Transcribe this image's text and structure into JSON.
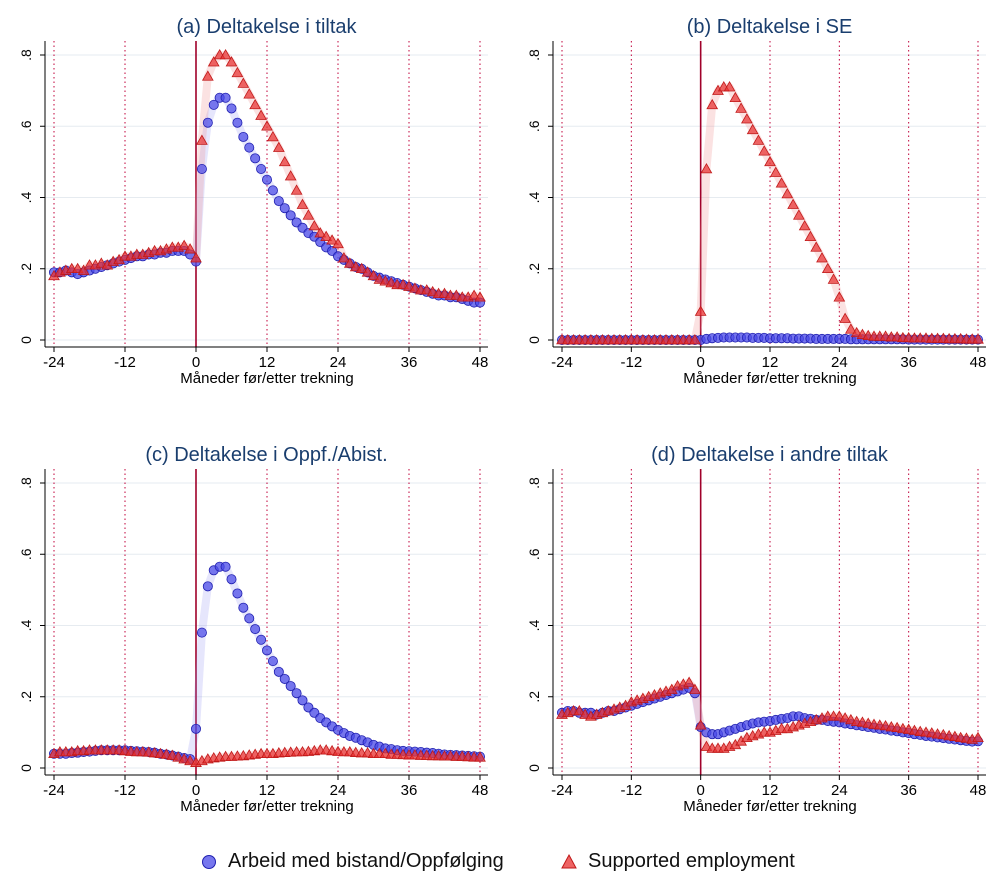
{
  "chart_data": [
    {
      "type": "scatter",
      "title": "(a) Deltakelse i tiltak",
      "xlabel": "Måneder før/etter trekning",
      "ylabel": "",
      "xlim": [
        -24,
        48
      ],
      "ylim": [
        0,
        0.8
      ],
      "xticks": [
        -24,
        -12,
        0,
        12,
        24,
        36,
        48
      ],
      "xtick_labels": [
        "-24",
        "-12",
        "0",
        "12",
        "24",
        "36",
        "48"
      ],
      "yticks": [
        0,
        0.2,
        0.4,
        0.6,
        0.8
      ],
      "ytick_labels": [
        "0",
        ".2",
        ".4",
        ".6",
        ".8"
      ],
      "x": [
        -24,
        -23,
        -22,
        -21,
        -20,
        -19,
        -18,
        -17,
        -16,
        -15,
        -14,
        -13,
        -12,
        -11,
        -10,
        -9,
        -8,
        -7,
        -6,
        -5,
        -4,
        -3,
        -2,
        -1,
        0,
        1,
        2,
        3,
        4,
        5,
        6,
        7,
        8,
        9,
        10,
        11,
        12,
        13,
        14,
        15,
        16,
        17,
        18,
        19,
        20,
        21,
        22,
        23,
        24,
        25,
        26,
        27,
        28,
        29,
        30,
        31,
        32,
        33,
        34,
        35,
        36,
        37,
        38,
        39,
        40,
        41,
        42,
        43,
        44,
        45,
        46,
        47,
        48
      ],
      "series": [
        {
          "name": "Arbeid med bistand/Oppfølging",
          "values": [
            0.19,
            0.19,
            0.195,
            0.19,
            0.185,
            0.19,
            0.195,
            0.2,
            0.205,
            0.21,
            0.215,
            0.22,
            0.225,
            0.23,
            0.235,
            0.235,
            0.24,
            0.24,
            0.245,
            0.245,
            0.25,
            0.25,
            0.25,
            0.24,
            0.22,
            0.48,
            0.61,
            0.66,
            0.68,
            0.68,
            0.65,
            0.61,
            0.57,
            0.54,
            0.51,
            0.48,
            0.45,
            0.42,
            0.39,
            0.37,
            0.35,
            0.33,
            0.315,
            0.3,
            0.29,
            0.275,
            0.26,
            0.25,
            0.235,
            0.225,
            0.215,
            0.205,
            0.2,
            0.19,
            0.18,
            0.175,
            0.17,
            0.165,
            0.16,
            0.155,
            0.15,
            0.145,
            0.14,
            0.135,
            0.13,
            0.125,
            0.125,
            0.12,
            0.12,
            0.115,
            0.11,
            0.105,
            0.105
          ]
        },
        {
          "name": "Supported employment",
          "values": [
            0.18,
            0.19,
            0.195,
            0.2,
            0.2,
            0.195,
            0.21,
            0.21,
            0.215,
            0.21,
            0.22,
            0.225,
            0.235,
            0.235,
            0.24,
            0.24,
            0.245,
            0.25,
            0.25,
            0.255,
            0.26,
            0.26,
            0.265,
            0.255,
            0.23,
            0.56,
            0.74,
            0.78,
            0.8,
            0.8,
            0.78,
            0.75,
            0.72,
            0.69,
            0.66,
            0.63,
            0.6,
            0.57,
            0.54,
            0.5,
            0.46,
            0.42,
            0.38,
            0.35,
            0.32,
            0.3,
            0.29,
            0.28,
            0.27,
            0.23,
            0.215,
            0.205,
            0.2,
            0.19,
            0.18,
            0.17,
            0.165,
            0.16,
            0.155,
            0.155,
            0.15,
            0.145,
            0.14,
            0.14,
            0.135,
            0.13,
            0.13,
            0.125,
            0.125,
            0.12,
            0.12,
            0.125,
            0.12
          ]
        }
      ]
    },
    {
      "type": "scatter",
      "title": "(b) Deltakelse i SE",
      "xlabel": "Måneder før/etter trekning",
      "ylabel": "",
      "xlim": [
        -24,
        48
      ],
      "ylim": [
        0,
        0.8
      ],
      "xticks": [
        -24,
        -12,
        0,
        12,
        24,
        36,
        48
      ],
      "xtick_labels": [
        "-24",
        "-12",
        "0",
        "12",
        "24",
        "36",
        "48"
      ],
      "yticks": [
        0,
        0.2,
        0.4,
        0.6,
        0.8
      ],
      "ytick_labels": [
        "0",
        ".2",
        ".4",
        ".6",
        ".8"
      ],
      "x": [
        -24,
        -23,
        -22,
        -21,
        -20,
        -19,
        -18,
        -17,
        -16,
        -15,
        -14,
        -13,
        -12,
        -11,
        -10,
        -9,
        -8,
        -7,
        -6,
        -5,
        -4,
        -3,
        -2,
        -1,
        0,
        1,
        2,
        3,
        4,
        5,
        6,
        7,
        8,
        9,
        10,
        11,
        12,
        13,
        14,
        15,
        16,
        17,
        18,
        19,
        20,
        21,
        22,
        23,
        24,
        25,
        26,
        27,
        28,
        29,
        30,
        31,
        32,
        33,
        34,
        35,
        36,
        37,
        38,
        39,
        40,
        41,
        42,
        43,
        44,
        45,
        46,
        47,
        48
      ],
      "series": [
        {
          "name": "Arbeid med bistand/Oppfølging",
          "values": [
            0,
            0,
            0,
            0,
            0,
            0,
            0,
            0,
            0,
            0,
            0,
            0,
            0,
            0,
            0,
            0,
            0,
            0,
            0,
            0,
            0,
            0,
            0,
            0,
            0,
            0.003,
            0.005,
            0.006,
            0.007,
            0.007,
            0.007,
            0.007,
            0.007,
            0.006,
            0.006,
            0.006,
            0.005,
            0.005,
            0.005,
            0.005,
            0.004,
            0.004,
            0.004,
            0.004,
            0.003,
            0.003,
            0.003,
            0.003,
            0.003,
            0.003,
            0.002,
            0.002,
            0.002,
            0.002,
            0.002,
            0.002,
            0.002,
            0.002,
            0.002,
            0.002,
            0.001,
            0.001,
            0.001,
            0.001,
            0.001,
            0.001,
            0.001,
            0.001,
            0.001,
            0.001,
            0.001,
            0.001,
            0.001
          ]
        },
        {
          "name": "Supported employment",
          "values": [
            0,
            0,
            0,
            0,
            0,
            0,
            0,
            0,
            0,
            0,
            0,
            0,
            0,
            0,
            0,
            0,
            0,
            0,
            0,
            0,
            0,
            0,
            0,
            0,
            0.08,
            0.48,
            0.66,
            0.7,
            0.71,
            0.71,
            0.68,
            0.65,
            0.62,
            0.59,
            0.56,
            0.53,
            0.5,
            0.47,
            0.44,
            0.41,
            0.38,
            0.35,
            0.32,
            0.29,
            0.26,
            0.23,
            0.2,
            0.17,
            0.12,
            0.06,
            0.03,
            0.02,
            0.015,
            0.012,
            0.01,
            0.01,
            0.01,
            0.008,
            0.008,
            0.006,
            0.006,
            0.005,
            0.005,
            0.005,
            0.004,
            0.004,
            0.004,
            0.003,
            0.003,
            0.003,
            0.002,
            0.002,
            0.002
          ]
        }
      ]
    },
    {
      "type": "scatter",
      "title": "(c) Deltakelse i Oppf./Abist.",
      "xlabel": "Måneder før/etter trekning",
      "ylabel": "",
      "xlim": [
        -24,
        48
      ],
      "ylim": [
        0,
        0.8
      ],
      "xticks": [
        -24,
        -12,
        0,
        12,
        24,
        36,
        48
      ],
      "xtick_labels": [
        "-24",
        "-12",
        "0",
        "12",
        "24",
        "36",
        "48"
      ],
      "yticks": [
        0,
        0.2,
        0.4,
        0.6,
        0.8
      ],
      "ytick_labels": [
        "0",
        ".2",
        ".4",
        ".6",
        ".8"
      ],
      "x": [
        -24,
        -23,
        -22,
        -21,
        -20,
        -19,
        -18,
        -17,
        -16,
        -15,
        -14,
        -13,
        -12,
        -11,
        -10,
        -9,
        -8,
        -7,
        -6,
        -5,
        -4,
        -3,
        -2,
        -1,
        0,
        1,
        2,
        3,
        4,
        5,
        6,
        7,
        8,
        9,
        10,
        11,
        12,
        13,
        14,
        15,
        16,
        17,
        18,
        19,
        20,
        21,
        22,
        23,
        24,
        25,
        26,
        27,
        28,
        29,
        30,
        31,
        32,
        33,
        34,
        35,
        36,
        37,
        38,
        39,
        40,
        41,
        42,
        43,
        44,
        45,
        46,
        47,
        48
      ],
      "series": [
        {
          "name": "Arbeid med bistand/Oppfølging",
          "values": [
            0.04,
            0.04,
            0.04,
            0.042,
            0.043,
            0.045,
            0.046,
            0.048,
            0.05,
            0.05,
            0.05,
            0.05,
            0.05,
            0.048,
            0.047,
            0.046,
            0.045,
            0.043,
            0.04,
            0.038,
            0.035,
            0.032,
            0.028,
            0.025,
            0.11,
            0.38,
            0.51,
            0.555,
            0.565,
            0.565,
            0.53,
            0.49,
            0.45,
            0.42,
            0.39,
            0.36,
            0.33,
            0.3,
            0.27,
            0.25,
            0.23,
            0.21,
            0.19,
            0.17,
            0.155,
            0.14,
            0.128,
            0.117,
            0.107,
            0.098,
            0.09,
            0.085,
            0.078,
            0.072,
            0.065,
            0.06,
            0.055,
            0.053,
            0.05,
            0.048,
            0.047,
            0.046,
            0.045,
            0.043,
            0.042,
            0.04,
            0.038,
            0.037,
            0.036,
            0.035,
            0.034,
            0.033,
            0.032
          ]
        },
        {
          "name": "Supported employment",
          "values": [
            0.04,
            0.045,
            0.045,
            0.045,
            0.048,
            0.048,
            0.05,
            0.05,
            0.05,
            0.05,
            0.05,
            0.05,
            0.048,
            0.046,
            0.045,
            0.045,
            0.044,
            0.042,
            0.04,
            0.038,
            0.035,
            0.03,
            0.025,
            0.02,
            0.015,
            0.02,
            0.025,
            0.028,
            0.03,
            0.032,
            0.032,
            0.033,
            0.034,
            0.036,
            0.038,
            0.04,
            0.04,
            0.04,
            0.042,
            0.043,
            0.044,
            0.045,
            0.045,
            0.046,
            0.048,
            0.05,
            0.05,
            0.048,
            0.046,
            0.045,
            0.045,
            0.043,
            0.042,
            0.042,
            0.04,
            0.04,
            0.04,
            0.038,
            0.038,
            0.037,
            0.036,
            0.036,
            0.035,
            0.035,
            0.034,
            0.034,
            0.033,
            0.033,
            0.032,
            0.032,
            0.031,
            0.03,
            0.03
          ]
        }
      ]
    },
    {
      "type": "scatter",
      "title": "(d) Deltakelse i andre tiltak",
      "xlabel": "Måneder før/etter trekning",
      "ylabel": "",
      "xlim": [
        -24,
        48
      ],
      "ylim": [
        0,
        0.8
      ],
      "xticks": [
        -24,
        -12,
        0,
        12,
        24,
        36,
        48
      ],
      "xtick_labels": [
        "-24",
        "-12",
        "0",
        "12",
        "24",
        "36",
        "48"
      ],
      "yticks": [
        0,
        0.2,
        0.4,
        0.6,
        0.8
      ],
      "ytick_labels": [
        "0",
        ".2",
        ".4",
        ".6",
        ".8"
      ],
      "x": [
        -24,
        -23,
        -22,
        -21,
        -20,
        -19,
        -18,
        -17,
        -16,
        -15,
        -14,
        -13,
        -12,
        -11,
        -10,
        -9,
        -8,
        -7,
        -6,
        -5,
        -4,
        -3,
        -2,
        -1,
        0,
        1,
        2,
        3,
        4,
        5,
        6,
        7,
        8,
        9,
        10,
        11,
        12,
        13,
        14,
        15,
        16,
        17,
        18,
        19,
        20,
        21,
        22,
        23,
        24,
        25,
        26,
        27,
        28,
        29,
        30,
        31,
        32,
        33,
        34,
        35,
        36,
        37,
        38,
        39,
        40,
        41,
        42,
        43,
        44,
        45,
        46,
        47,
        48
      ],
      "series": [
        {
          "name": "Arbeid med bistand/Oppfølging",
          "values": [
            0.155,
            0.16,
            0.16,
            0.155,
            0.155,
            0.155,
            0.15,
            0.155,
            0.16,
            0.16,
            0.165,
            0.17,
            0.175,
            0.18,
            0.185,
            0.19,
            0.195,
            0.2,
            0.205,
            0.21,
            0.215,
            0.22,
            0.225,
            0.21,
            0.115,
            0.1,
            0.095,
            0.095,
            0.1,
            0.105,
            0.11,
            0.115,
            0.12,
            0.125,
            0.128,
            0.13,
            0.132,
            0.135,
            0.138,
            0.14,
            0.145,
            0.145,
            0.14,
            0.138,
            0.135,
            0.135,
            0.132,
            0.13,
            0.128,
            0.125,
            0.123,
            0.12,
            0.118,
            0.115,
            0.113,
            0.11,
            0.108,
            0.105,
            0.103,
            0.1,
            0.098,
            0.095,
            0.093,
            0.09,
            0.088,
            0.086,
            0.084,
            0.082,
            0.08,
            0.078,
            0.076,
            0.074,
            0.075
          ]
        },
        {
          "name": "Supported employment",
          "values": [
            0.15,
            0.155,
            0.16,
            0.16,
            0.15,
            0.145,
            0.15,
            0.155,
            0.16,
            0.165,
            0.17,
            0.175,
            0.185,
            0.19,
            0.195,
            0.2,
            0.205,
            0.21,
            0.215,
            0.22,
            0.23,
            0.235,
            0.24,
            0.22,
            0.12,
            0.06,
            0.055,
            0.055,
            0.055,
            0.06,
            0.065,
            0.075,
            0.085,
            0.09,
            0.095,
            0.1,
            0.1,
            0.105,
            0.11,
            0.11,
            0.115,
            0.12,
            0.125,
            0.13,
            0.135,
            0.14,
            0.145,
            0.145,
            0.145,
            0.14,
            0.135,
            0.13,
            0.128,
            0.125,
            0.122,
            0.12,
            0.118,
            0.115,
            0.113,
            0.11,
            0.108,
            0.105,
            0.102,
            0.1,
            0.098,
            0.095,
            0.093,
            0.09,
            0.088,
            0.085,
            0.083,
            0.08,
            0.085
          ]
        }
      ]
    }
  ],
  "legend": {
    "series_1": "Arbeid med bistand/Oppfølging",
    "series_2": "Supported employment"
  },
  "colors": {
    "series_1": "#4a4ae8",
    "series_2": "#e83030",
    "vline_zero": "#a0002a",
    "vline_dotted": "#c0003a",
    "grid": "#e6ebf0",
    "title": "#1a3e6e"
  }
}
